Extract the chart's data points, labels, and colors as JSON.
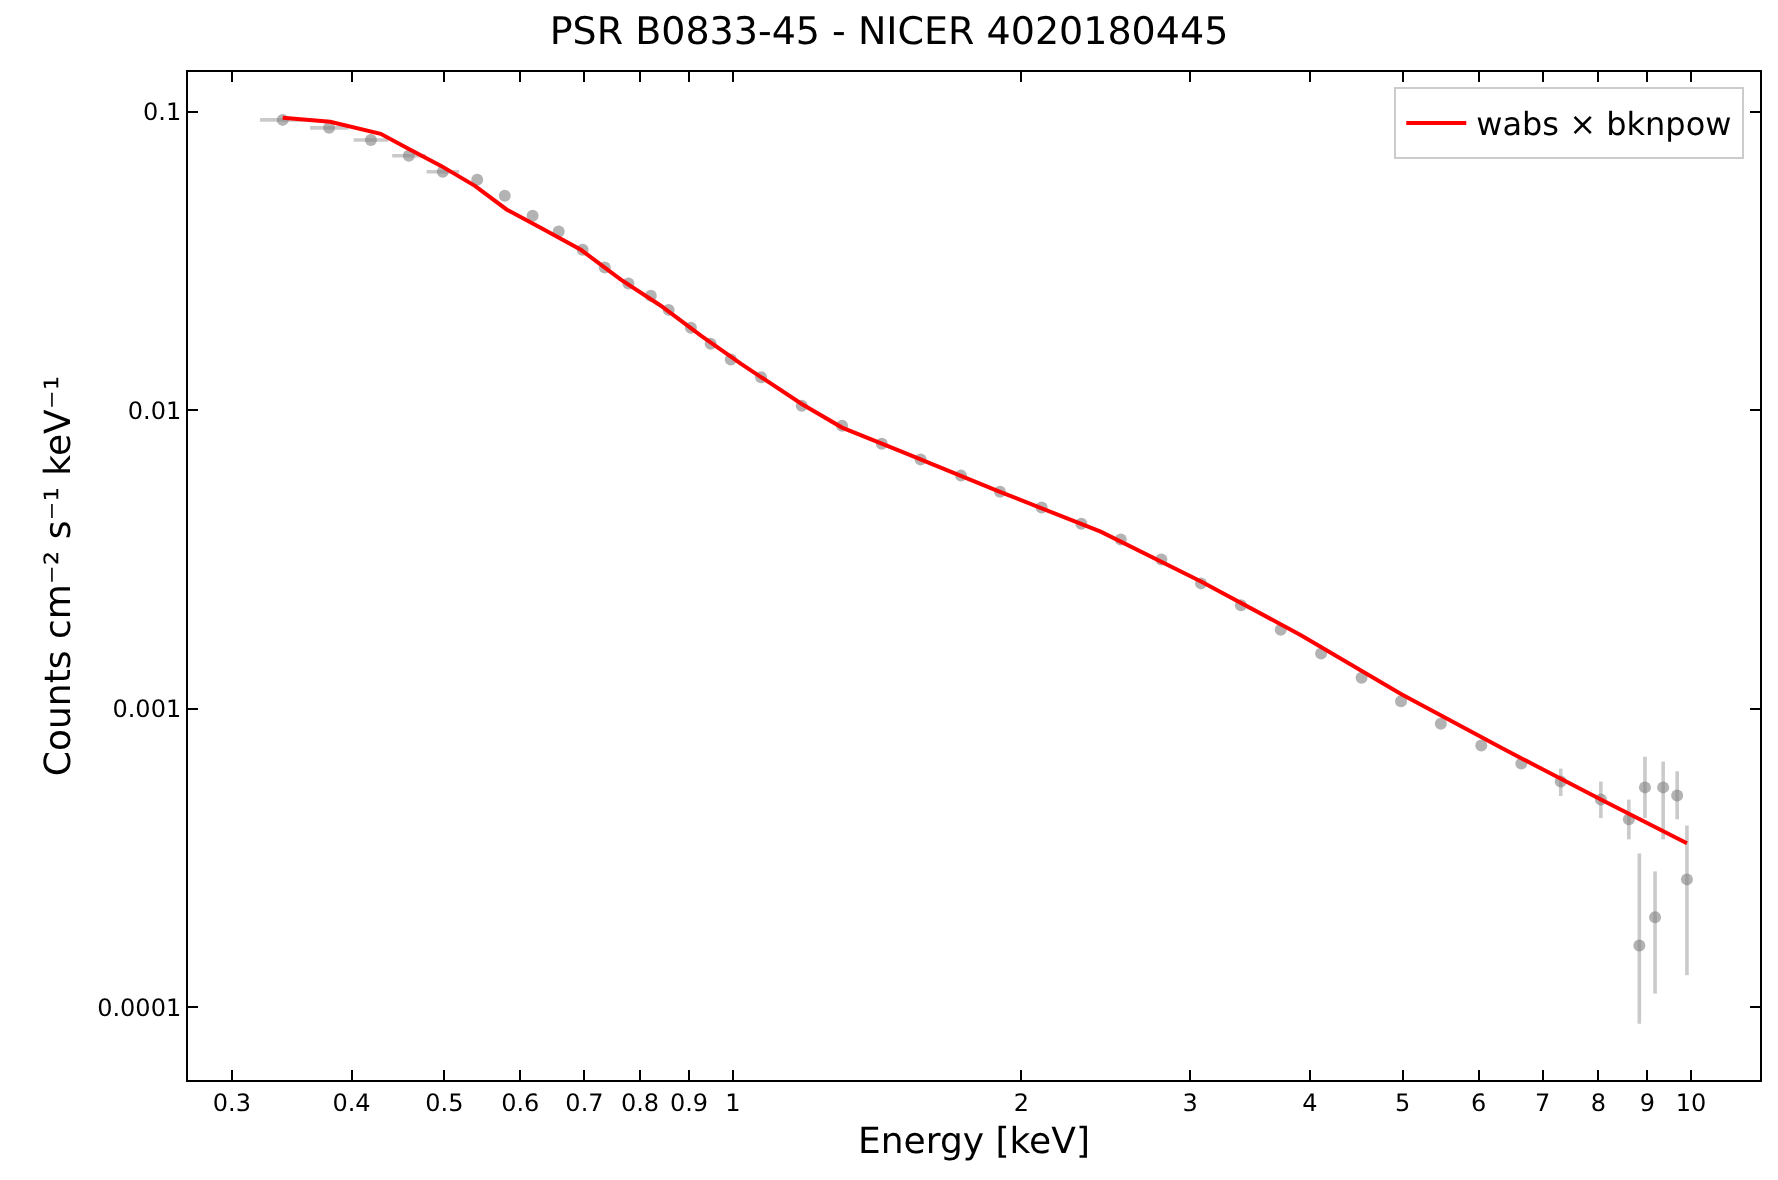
{
  "chart_data": {
    "type": "scatter",
    "title": "PSR B0833-45 - NICER 4020180445",
    "xlabel": "Energy [keV]",
    "ylabel": "Counts cm⁻² s⁻¹ keV⁻¹",
    "log": "xy",
    "grid": false,
    "legend": "top right",
    "xlim": [
      0.27,
      11.8
    ],
    "ylim": [
      5.7e-05,
      0.136
    ],
    "xticks": [
      0.3,
      0.4,
      0.5,
      0.6,
      0.7,
      0.8,
      0.9,
      1,
      2,
      3,
      4,
      5,
      6,
      7,
      8,
      9,
      10
    ],
    "yticks": [
      0.0001,
      0.001,
      0.01,
      0.1
    ],
    "series": [
      {
        "marker": "circle",
        "color": "#808080",
        "x": [
          0.339,
          0.379,
          0.419,
          0.459,
          0.498,
          0.541,
          0.578,
          0.618,
          0.658,
          0.697,
          0.735,
          0.778,
          0.821,
          0.857,
          0.904,
          0.948,
          0.995,
          1.07,
          1.18,
          1.3,
          1.43,
          1.57,
          1.73,
          1.9,
          2.1,
          2.31,
          2.54,
          2.8,
          3.08,
          3.39,
          3.73,
          4.11,
          4.53,
          4.98,
          5.48,
          6.04,
          6.65,
          7.31,
          8.05,
          8.61,
          8.83,
          8.95,
          9.17,
          9.35,
          9.67,
          9.9
        ],
        "values": [
          0.094,
          0.0884,
          0.0805,
          0.0713,
          0.063,
          0.0592,
          0.0523,
          0.0449,
          0.0397,
          0.0345,
          0.0301,
          0.0266,
          0.0242,
          0.0217,
          0.0189,
          0.0167,
          0.0148,
          0.0129,
          0.01035,
          0.00887,
          0.00773,
          0.00684,
          0.00604,
          0.00533,
          0.00472,
          0.00417,
          0.00369,
          0.00316,
          0.00263,
          0.00222,
          0.00184,
          0.00153,
          0.00127,
          0.00106,
          0.000891,
          0.000753,
          0.000655,
          0.00057,
          0.000496,
          0.000426,
          0.000161,
          0.000545,
          0.0002,
          0.000545,
          0.000512,
          0.000268
        ],
        "errors": [
          null,
          null,
          null,
          null,
          null,
          null,
          null,
          null,
          null,
          null,
          null,
          null,
          null,
          null,
          null,
          null,
          null,
          null,
          null,
          null,
          null,
          null,
          null,
          null,
          null,
          null,
          null,
          null,
          null,
          null,
          null,
          null,
          null,
          null,
          null,
          null,
          null,
          [
            0.00051,
            0.00063
          ],
          [
            0.00043,
            0.00057
          ],
          [
            0.000365,
            0.000496
          ],
          [
            8.8e-05,
            0.000327
          ],
          [
            0.00043,
            0.00069
          ],
          [
            0.000111,
            0.000285
          ],
          [
            0.000365,
            0.000665
          ],
          [
            0.000426,
            0.000617
          ],
          [
            0.000128,
            0.000406
          ]
        ],
        "xerrors": [
          [
            0.321,
            0.359
          ],
          [
            0.362,
            0.397
          ],
          [
            0.402,
            0.437
          ],
          [
            0.441,
            0.478
          ],
          [
            0.479,
            0.518
          ],
          null,
          null,
          null,
          null,
          null,
          null,
          null,
          null,
          null,
          null,
          null,
          null,
          null,
          null,
          null,
          null,
          null,
          null,
          null,
          null,
          null,
          null,
          null,
          null,
          null,
          null,
          null,
          null,
          null,
          null,
          null,
          null,
          null,
          null,
          null,
          null,
          null,
          null,
          null,
          null,
          null
        ]
      },
      {
        "type": "line",
        "name": "wabs × bknpow",
        "color": "#ff0000",
        "line_style": "solid",
        "x": [
          0.339,
          0.38,
          0.429,
          0.457,
          0.496,
          0.538,
          0.581,
          0.63,
          0.694,
          0.764,
          0.841,
          0.926,
          1.02,
          1.18,
          1.3,
          1.5,
          1.9,
          2.42,
          3.08,
          3.92,
          4.98,
          6.33,
          8.05,
          9.9
        ],
        "values": [
          0.0955,
          0.0926,
          0.0844,
          0.0757,
          0.0659,
          0.0565,
          0.047,
          0.0409,
          0.0345,
          0.0274,
          0.0224,
          0.0178,
          0.0143,
          0.0105,
          0.00875,
          0.00727,
          0.00533,
          0.00392,
          0.00267,
          0.00176,
          0.00112,
          0.000741,
          0.000496,
          0.000354
        ]
      }
    ]
  }
}
